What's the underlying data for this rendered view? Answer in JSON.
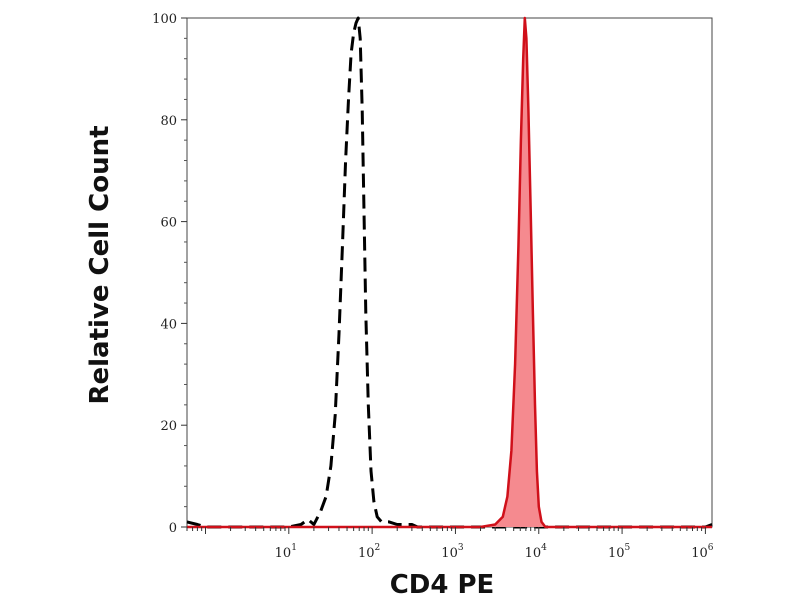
{
  "chart_data": {
    "type": "area",
    "xlabel": "CD4 PE",
    "ylabel": "Relative Cell Count",
    "xscale": "log",
    "xlim": [
      0.6,
      1200000
    ],
    "ylim": [
      0,
      100
    ],
    "grid": false,
    "x_ticks": [
      {
        "value": 10,
        "base": "10",
        "exp": "1"
      },
      {
        "value": 100,
        "base": "10",
        "exp": "2"
      },
      {
        "value": 1000,
        "base": "10",
        "exp": "3"
      },
      {
        "value": 10000,
        "base": "10",
        "exp": "4"
      },
      {
        "value": 100000,
        "base": "10",
        "exp": "5"
      },
      {
        "value": 1000000,
        "base": "10",
        "exp": "6"
      }
    ],
    "y_ticks": [
      {
        "value": 0,
        "label": "0"
      },
      {
        "value": 20,
        "label": "20"
      },
      {
        "value": 40,
        "label": "40"
      },
      {
        "value": 60,
        "label": "60"
      },
      {
        "value": 80,
        "label": "80"
      },
      {
        "value": 100,
        "label": "100"
      }
    ],
    "series": [
      {
        "style": "dashed",
        "color": "#000000",
        "fill": false,
        "points": [
          [
            0.6,
            1
          ],
          [
            0.8,
            0.5
          ],
          [
            1,
            0
          ],
          [
            5,
            0
          ],
          [
            10,
            0
          ],
          [
            14,
            0.5
          ],
          [
            17,
            1.5
          ],
          [
            20,
            0.5
          ],
          [
            24,
            3
          ],
          [
            28,
            6
          ],
          [
            32,
            12
          ],
          [
            36,
            22
          ],
          [
            40,
            38
          ],
          [
            44,
            55
          ],
          [
            48,
            72
          ],
          [
            52,
            84
          ],
          [
            56,
            93
          ],
          [
            60,
            97
          ],
          [
            64,
            99
          ],
          [
            68,
            100
          ],
          [
            72,
            96
          ],
          [
            76,
            82
          ],
          [
            80,
            62
          ],
          [
            84,
            42
          ],
          [
            90,
            24
          ],
          [
            97,
            11
          ],
          [
            105,
            5
          ],
          [
            115,
            2
          ],
          [
            130,
            1
          ],
          [
            160,
            1
          ],
          [
            200,
            0.5
          ],
          [
            300,
            0.5
          ],
          [
            350,
            0
          ],
          [
            1000,
            0
          ],
          [
            3000,
            0
          ],
          [
            1000000,
            0
          ],
          [
            1200000,
            0.5
          ]
        ]
      },
      {
        "style": "solid",
        "color": "#d0101a",
        "fill": true,
        "fill_color": "#f58a8f",
        "points": [
          [
            0.6,
            0
          ],
          [
            2000,
            0
          ],
          [
            3000,
            0.5
          ],
          [
            3700,
            2
          ],
          [
            4200,
            6
          ],
          [
            4700,
            15
          ],
          [
            5200,
            32
          ],
          [
            5700,
            55
          ],
          [
            6100,
            76
          ],
          [
            6500,
            92
          ],
          [
            6800,
            100
          ],
          [
            7100,
            96
          ],
          [
            7500,
            82
          ],
          [
            8000,
            62
          ],
          [
            8500,
            42
          ],
          [
            9000,
            24
          ],
          [
            9500,
            11
          ],
          [
            10000,
            4
          ],
          [
            10800,
            1
          ],
          [
            12000,
            0
          ],
          [
            100000,
            0
          ],
          [
            1200000,
            0
          ]
        ]
      }
    ]
  }
}
